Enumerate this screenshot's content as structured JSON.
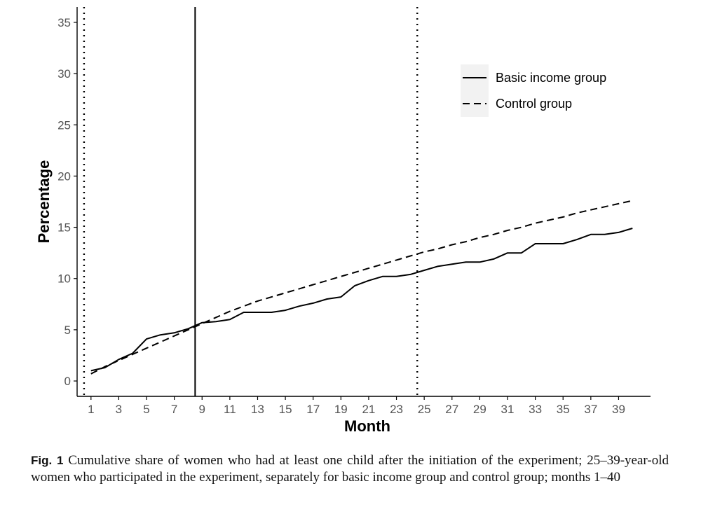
{
  "chart_data": {
    "type": "line",
    "title": "",
    "xlabel": "Month",
    "ylabel": "Percentage",
    "xlim": [
      0,
      41.3
    ],
    "ylim": [
      -1.5,
      36.5
    ],
    "xticks": [
      1,
      3,
      5,
      7,
      9,
      11,
      13,
      15,
      17,
      19,
      21,
      23,
      25,
      27,
      29,
      31,
      33,
      35,
      37,
      39
    ],
    "yticks": [
      0,
      5,
      10,
      15,
      20,
      25,
      30,
      35
    ],
    "grid": false,
    "legend_position": "top-right",
    "vlines": [
      {
        "x": 0.5,
        "style": "dotted"
      },
      {
        "x": 8.5,
        "style": "solid"
      },
      {
        "x": 24.5,
        "style": "dotted"
      }
    ],
    "series": [
      {
        "name": "Basic income group",
        "style": "solid",
        "x": [
          1,
          2,
          3,
          4,
          5,
          6,
          7,
          8,
          9,
          10,
          11,
          12,
          13,
          14,
          15,
          16,
          17,
          18,
          19,
          20,
          21,
          22,
          23,
          24,
          25,
          26,
          27,
          28,
          29,
          30,
          31,
          32,
          33,
          34,
          35,
          36,
          37,
          38,
          39,
          40
        ],
        "y": [
          1.0,
          1.3,
          2.1,
          2.7,
          4.1,
          4.5,
          4.7,
          5.1,
          5.7,
          5.8,
          6.0,
          6.7,
          6.7,
          6.7,
          6.9,
          7.3,
          7.6,
          8.0,
          8.2,
          9.3,
          9.8,
          10.2,
          10.2,
          10.4,
          10.8,
          11.2,
          11.4,
          11.6,
          11.6,
          11.9,
          12.5,
          12.5,
          13.4,
          13.4,
          13.4,
          13.8,
          14.3,
          14.3,
          14.5,
          14.9
        ]
      },
      {
        "name": "Control group",
        "style": "dashed",
        "x": [
          1,
          2,
          3,
          4,
          5,
          6,
          7,
          8,
          9,
          10,
          11,
          12,
          13,
          14,
          15,
          16,
          17,
          18,
          19,
          20,
          21,
          22,
          23,
          24,
          25,
          26,
          27,
          28,
          29,
          30,
          31,
          32,
          33,
          34,
          35,
          36,
          37,
          38,
          39,
          40
        ],
        "y": [
          0.7,
          1.4,
          2.0,
          2.6,
          3.2,
          3.8,
          4.4,
          5.0,
          5.6,
          6.2,
          6.8,
          7.3,
          7.8,
          8.2,
          8.6,
          9.0,
          9.4,
          9.8,
          10.2,
          10.6,
          11.0,
          11.4,
          11.8,
          12.2,
          12.6,
          12.9,
          13.3,
          13.6,
          14.0,
          14.3,
          14.7,
          15.0,
          15.4,
          15.7,
          16.0,
          16.4,
          16.7,
          17.0,
          17.3,
          17.6
        ]
      }
    ]
  },
  "caption": {
    "label": "Fig. 1",
    "text": "Cumulative share of women who had at least one child after the initiation of the experiment; 25–39-year-old women who participated in the experiment, separately for basic income group and control group; months 1–40"
  }
}
